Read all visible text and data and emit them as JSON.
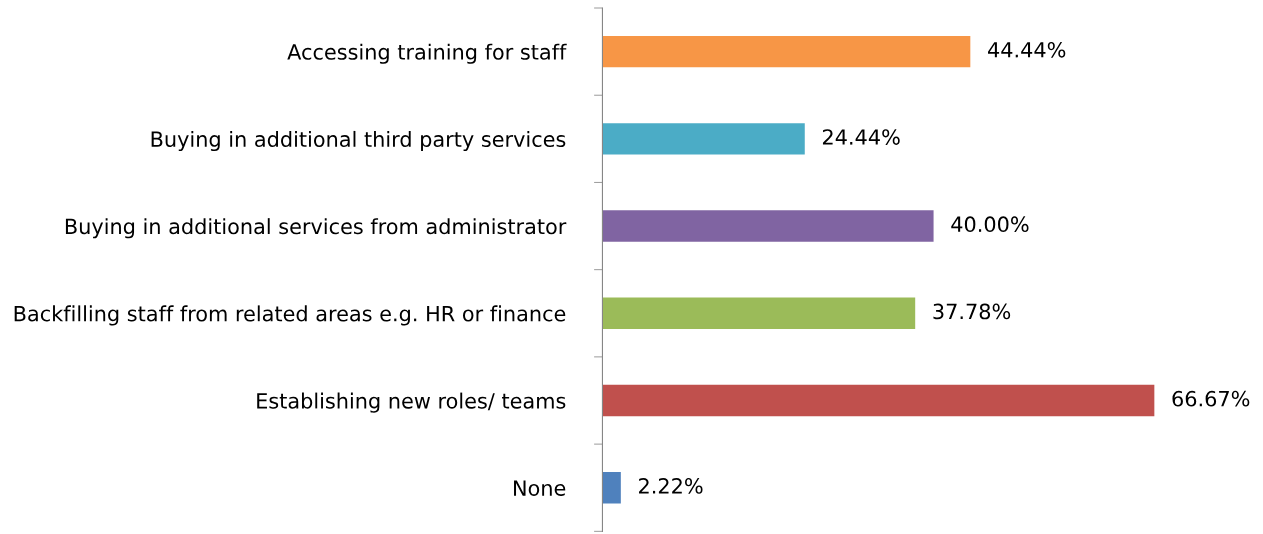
{
  "chart_data": {
    "type": "bar",
    "orientation": "horizontal",
    "categories": [
      "Accessing training for staff",
      "Buying in additional third party services",
      "Buying in additional services from administrator",
      "Backfilling staff from related areas e.g. HR or finance",
      "Establishing new roles/ teams",
      "None"
    ],
    "values": [
      44.44,
      24.44,
      40.0,
      37.78,
      66.67,
      2.22
    ],
    "colors": [
      "#f79646",
      "#4bacc6",
      "#8064a2",
      "#9bbb59",
      "#c0504d",
      "#4f81bd"
    ],
    "value_labels": [
      "44.44%",
      "24.44%",
      "40.00%",
      "37.78%",
      "66.67%",
      "2.22%"
    ]
  }
}
